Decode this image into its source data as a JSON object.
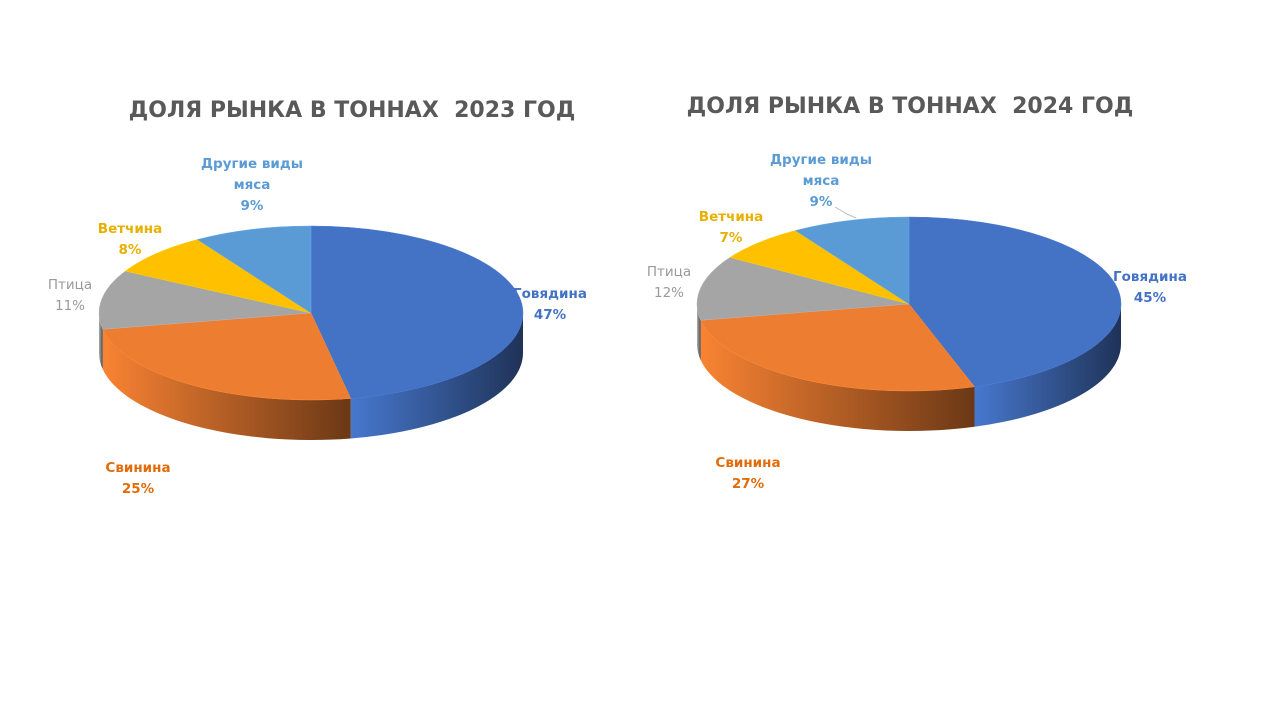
{
  "chart_data": [
    {
      "type": "pie",
      "title": "ДОЛЯ РЫНКА В ТОННАХ  2023 ГОД",
      "slices": [
        {
          "name": "Говядина",
          "value": 47,
          "label": "47%",
          "color": "#4472C4",
          "label_lines": [
            "Говядина"
          ]
        },
        {
          "name": "Свинина",
          "value": 25,
          "label": "25%",
          "color": "#ED7D31",
          "label_lines": [
            "Свинина"
          ]
        },
        {
          "name": "Птица",
          "value": 11,
          "label": "11%",
          "color": "#A5A5A5",
          "label_lines": [
            "Птица"
          ]
        },
        {
          "name": "Ветчина",
          "value": 8,
          "label": "8%",
          "color": "#FFC000",
          "label_lines": [
            "Ветчина"
          ]
        },
        {
          "name": "Другие виды мяса",
          "value": 9,
          "label": "9%",
          "color": "#5B9BD5",
          "label_lines": [
            "Другие виды",
            "мяса"
          ]
        }
      ]
    },
    {
      "type": "pie",
      "title": "ДОЛЯ РЫНКА В ТОННАХ  2024 ГОД",
      "slices": [
        {
          "name": "Говядина",
          "value": 45,
          "label": "45%",
          "color": "#4472C4",
          "label_lines": [
            "Говядина"
          ]
        },
        {
          "name": "Свинина",
          "value": 27,
          "label": "27%",
          "color": "#ED7D31",
          "label_lines": [
            "Свинина"
          ]
        },
        {
          "name": "Птица",
          "value": 12,
          "label": "12%",
          "color": "#A5A5A5",
          "label_lines": [
            "Птица"
          ]
        },
        {
          "name": "Ветчина",
          "value": 7,
          "label": "7%",
          "color": "#FFC000",
          "label_lines": [
            "Ветчина"
          ]
        },
        {
          "name": "Другие виды мяса",
          "value": 9,
          "label": "9%",
          "color": "#5B9BD5",
          "label_lines": [
            "Другие виды",
            "мяса"
          ]
        }
      ]
    }
  ]
}
